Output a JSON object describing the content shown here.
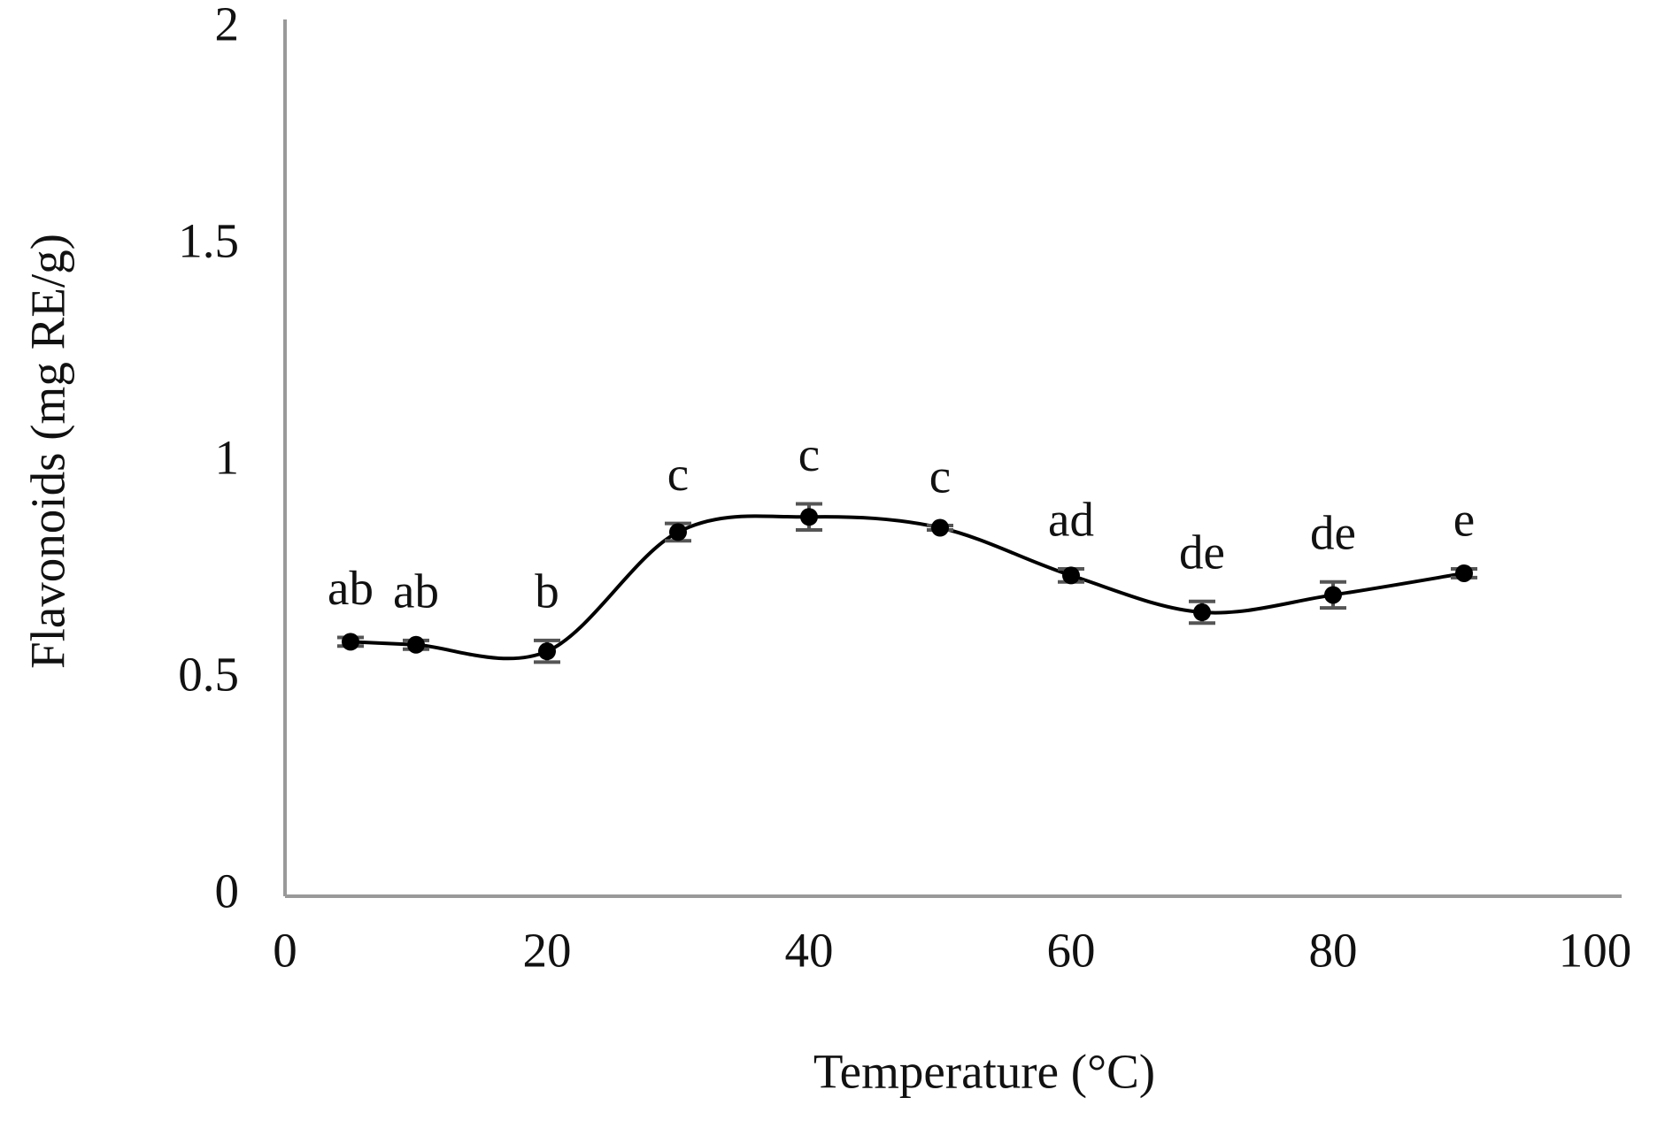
{
  "chart_data": {
    "type": "line",
    "x_label": "Temperature (°C)",
    "y_label": "Flavonoids (mg RE/g)",
    "x": [
      5,
      10,
      20,
      30,
      40,
      50,
      60,
      70,
      80,
      90
    ],
    "series": [
      {
        "color": "#000000",
        "values": [
          0.587,
          0.58,
          0.565,
          0.84,
          0.875,
          0.85,
          0.74,
          0.655,
          0.695,
          0.745
        ],
        "errors": [
          0.01,
          0.01,
          0.025,
          0.02,
          0.03,
          0.005,
          0.015,
          0.025,
          0.03,
          0.01
        ],
        "annotations": [
          "ab",
          "ab",
          "b",
          "c",
          "c",
          "c",
          "ad",
          "de",
          "de",
          "e"
        ]
      }
    ],
    "xlim": [
      0,
      100
    ],
    "xticks": [
      0,
      20,
      40,
      60,
      80,
      100
    ],
    "ylim": [
      0,
      2
    ],
    "yticks": [
      0,
      0.5,
      1,
      1.5,
      2
    ],
    "smooth": true,
    "grid": false
  }
}
